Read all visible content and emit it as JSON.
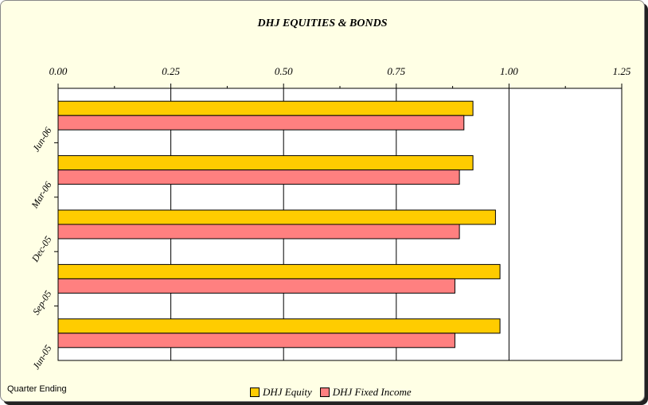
{
  "chart_data": {
    "type": "bar",
    "orientation": "horizontal",
    "title": "DHJ EQUITIES & BONDS",
    "ylabel": "Quarter Ending",
    "xlabel": "",
    "xlim": [
      0,
      1.25
    ],
    "x_ticks": [
      "0.00",
      "0.25",
      "0.50",
      "0.75",
      "1.00",
      "1.25"
    ],
    "categories": [
      "Jun-06",
      "Mar-06",
      "Dec-05",
      "Sep-05",
      "Jun-05"
    ],
    "series": [
      {
        "name": "DHJ Equity",
        "color": "#ffcc00",
        "values": [
          0.92,
          0.92,
          0.97,
          0.98,
          0.98
        ]
      },
      {
        "name": "DHJ Fixed Income",
        "color": "#ff8080",
        "values": [
          0.9,
          0.89,
          0.89,
          0.88,
          0.88
        ]
      }
    ],
    "grid": "vertical",
    "legend": "bottom"
  }
}
